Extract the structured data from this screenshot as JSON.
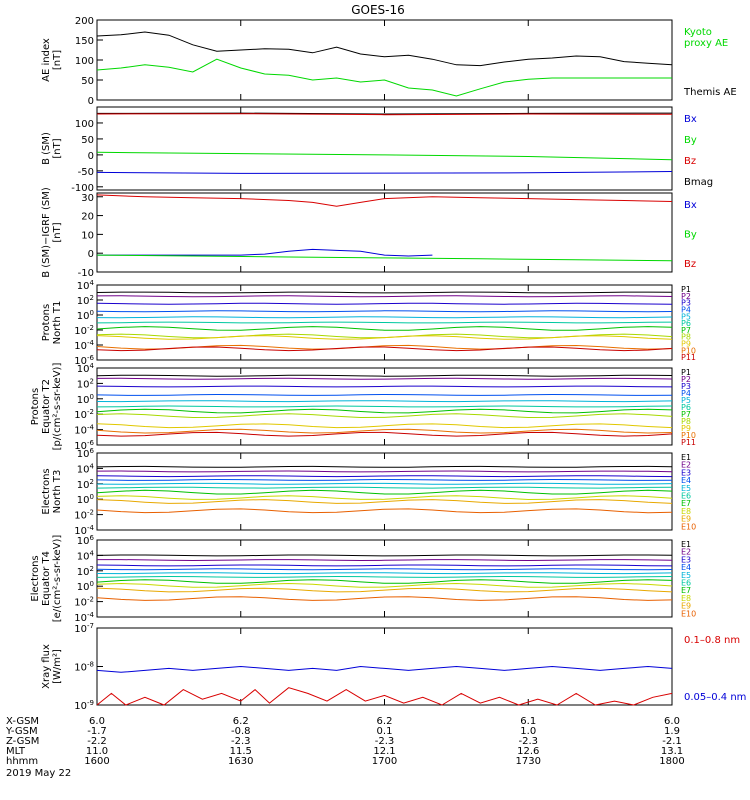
{
  "title": "GOES-16",
  "colors": {
    "black": "#000000",
    "green": "#00d800",
    "red": "#d80000",
    "blue": "#0000d8",
    "P": [
      "#000000",
      "#70008a",
      "#1a00cc",
      "#0050ee",
      "#00b4d8",
      "#00c8a0",
      "#00c000",
      "#a8d800",
      "#e0c800",
      "#e87000",
      "#c80000"
    ],
    "E": [
      "#000000",
      "#70008a",
      "#1a00cc",
      "#0050ee",
      "#00b4d8",
      "#00c8a0",
      "#00c000",
      "#c8d800",
      "#e8a800",
      "#e86000"
    ]
  },
  "chart_data": [
    {
      "type": "line",
      "ylabel": "AE index\n[nT]",
      "ylim": [
        0,
        200
      ],
      "yticks": [
        "0",
        "50",
        "100",
        "150",
        "200"
      ],
      "legend": [
        {
          "label": "Kyoto\nproxy AE",
          "color": "green"
        },
        {
          "label": "Themis AE",
          "color": "black"
        }
      ],
      "series": [
        {
          "name": "Themis AE",
          "color": "black",
          "x": [
            0,
            5,
            10,
            15,
            20,
            25,
            30,
            35,
            40,
            45,
            50,
            55,
            60,
            65,
            70,
            75,
            80,
            85,
            90,
            95,
            100,
            105,
            110,
            115,
            120
          ],
          "y": [
            160,
            163,
            170,
            162,
            138,
            122,
            125,
            128,
            127,
            118,
            132,
            115,
            108,
            112,
            102,
            88,
            86,
            95,
            102,
            105,
            110,
            108,
            96,
            92,
            88
          ]
        },
        {
          "name": "Kyoto proxy AE",
          "color": "green",
          "x": [
            0,
            5,
            10,
            15,
            20,
            25,
            30,
            35,
            40,
            45,
            50,
            55,
            60,
            65,
            70,
            75,
            80,
            85,
            90,
            95,
            100,
            105,
            110,
            115,
            120
          ],
          "y": [
            75,
            80,
            88,
            82,
            70,
            102,
            80,
            65,
            62,
            50,
            55,
            45,
            50,
            30,
            25,
            10,
            28,
            45,
            52,
            55,
            55,
            55,
            55,
            55,
            55
          ]
        }
      ]
    },
    {
      "type": "line",
      "ylabel": "B (SM)\n[nT]",
      "ylim": [
        -110,
        150
      ],
      "yticks": [
        "-100",
        "-50",
        "0",
        "50",
        "100"
      ],
      "legend": [
        {
          "label": "Bx",
          "color": "blue"
        },
        {
          "label": "By",
          "color": "green"
        },
        {
          "label": "Bz",
          "color": "red"
        },
        {
          "label": "Bmag",
          "color": "black"
        }
      ],
      "series": [
        {
          "name": "Bmag",
          "color": "black",
          "x": [
            0,
            30,
            60,
            90,
            120
          ],
          "y": [
            130,
            131,
            128,
            130,
            131
          ]
        },
        {
          "name": "Bz",
          "color": "red",
          "x": [
            0,
            30,
            60,
            90,
            120
          ],
          "y": [
            128,
            129,
            126,
            128,
            127
          ]
        },
        {
          "name": "By",
          "color": "green",
          "x": [
            0,
            30,
            60,
            90,
            120
          ],
          "y": [
            8,
            4,
            0,
            -5,
            -15
          ]
        },
        {
          "name": "Bx",
          "color": "blue",
          "x": [
            0,
            30,
            60,
            90,
            120
          ],
          "y": [
            -55,
            -58,
            -57,
            -56,
            -52
          ]
        }
      ]
    },
    {
      "type": "line",
      "ylabel": "B (SM)−IGRF (SM)\n[nT]",
      "ylim": [
        -10,
        32
      ],
      "yticks": [
        "-10",
        "0",
        "10",
        "20",
        "30"
      ],
      "legend": [
        {
          "label": "Bx",
          "color": "blue"
        },
        {
          "label": "By",
          "color": "green"
        },
        {
          "label": "Bz",
          "color": "red"
        }
      ],
      "series": [
        {
          "name": "Bz",
          "color": "red",
          "x": [
            0,
            10,
            20,
            30,
            40,
            45,
            50,
            55,
            60,
            70,
            80,
            90,
            100,
            110,
            120
          ],
          "y": [
            31,
            30,
            29.5,
            29,
            28,
            27,
            25,
            27,
            29,
            30,
            29.5,
            29,
            28.5,
            28,
            27.5
          ]
        },
        {
          "name": "Bx",
          "color": "blue",
          "x": [
            0,
            10,
            20,
            30,
            35,
            40,
            45,
            50,
            55,
            60,
            65,
            70
          ],
          "y": [
            -1,
            -1,
            -1,
            -1,
            -0.5,
            1,
            2,
            1.5,
            1,
            -1,
            -1.5,
            -1
          ]
        },
        {
          "name": "By",
          "color": "green",
          "x": [
            0,
            20,
            40,
            60,
            80,
            100,
            120
          ],
          "y": [
            -1,
            -1.5,
            -2,
            -2.5,
            -3,
            -3.5,
            -4
          ]
        }
      ]
    },
    {
      "type": "line",
      "log": true,
      "ylabel": "Protons\nNorth T1",
      "ylim": [
        -6,
        4
      ],
      "yticks": [
        "10^-6",
        "10^-4",
        "10^-2",
        "10^0",
        "10^2",
        "10^4"
      ],
      "legend_small": [
        "P1",
        "P2",
        "P3",
        "P4",
        "P5",
        "P6",
        "P7",
        "P8",
        "P9",
        "P10",
        "P11"
      ],
      "series_logy": [
        3,
        2.5,
        1.5,
        0.5,
        -0.3,
        -1,
        -1.8,
        -2.8,
        -3,
        -4.3,
        -4.5
      ]
    },
    {
      "type": "line",
      "log": true,
      "ylabel": "Protons\nEquator T2\n[p/(cm²-s-sr-keV)]",
      "ylim": [
        -6,
        4
      ],
      "yticks": [
        "10^-6",
        "10^-4",
        "10^-2",
        "10^0",
        "10^2",
        "10^4"
      ],
      "legend_small": [
        "P1",
        "P2",
        "P3",
        "P4",
        "P5",
        "P6",
        "P7",
        "P8",
        "P9",
        "P10",
        "P11"
      ],
      "series_logy": [
        3,
        2.6,
        1.6,
        0.5,
        -0.3,
        -1,
        -1.6,
        -2.2,
        -3.5,
        -4.2,
        -4.6
      ]
    },
    {
      "type": "line",
      "log": true,
      "ylabel": "Electrons\nNorth T3",
      "ylim": [
        -4,
        6
      ],
      "yticks": [
        "10^-4",
        "10^-2",
        "10^0",
        "10^2",
        "10^4",
        "10^6"
      ],
      "legend_small": [
        "E1",
        "E2",
        "E3",
        "E4",
        "E5",
        "E6",
        "E7",
        "E8",
        "E9",
        "E10"
      ],
      "series_logy": [
        4.2,
        3.6,
        3,
        2.5,
        2,
        1.5,
        0.9,
        0.2,
        -0.3,
        -1.5
      ]
    },
    {
      "type": "line",
      "log": true,
      "ylabel": "Electrons\nEquator T4\n[e/(cm²-s-sr-keV)]",
      "ylim": [
        -4,
        6
      ],
      "yticks": [
        "10^-4",
        "10^-2",
        "10^0",
        "10^2",
        "10^4",
        "10^6"
      ],
      "legend_small": [
        "E1",
        "E2",
        "E3",
        "E4",
        "E5",
        "E6",
        "E7",
        "E8",
        "E9",
        "E10"
      ],
      "series_logy": [
        4,
        3.4,
        2.7,
        2.2,
        1.7,
        1.2,
        0.6,
        0.1,
        -0.5,
        -1.6
      ]
    },
    {
      "type": "line",
      "log": true,
      "ylabel": "Xray flux\n[W/m²]",
      "ylim": [
        -9,
        -7
      ],
      "yticks": [
        "10^-9",
        "10^-8",
        "10^-7"
      ],
      "legend": [
        {
          "label": "0.1–0.8 nm",
          "color": "red"
        },
        {
          "label": "0.05–0.4 nm",
          "color": "blue"
        }
      ],
      "series": [
        {
          "name": "0.05–0.4 nm",
          "color": "blue",
          "x": [
            0,
            5,
            10,
            15,
            20,
            25,
            30,
            35,
            40,
            45,
            50,
            55,
            60,
            65,
            70,
            75,
            80,
            85,
            90,
            95,
            100,
            105,
            110,
            115,
            120
          ],
          "y": [
            -8.1,
            -8.15,
            -8.1,
            -8.05,
            -8.1,
            -8.05,
            -8.0,
            -8.05,
            -8.1,
            -8.05,
            -8.1,
            -8.0,
            -8.05,
            -8.1,
            -8.05,
            -8.0,
            -8.05,
            -8.1,
            -8.05,
            -8.0,
            -8.05,
            -8.1,
            -8.05,
            -8.0,
            -8.05
          ]
        },
        {
          "name": "0.1–0.8 nm",
          "color": "red",
          "x": [
            0,
            3,
            6,
            10,
            14,
            18,
            22,
            26,
            30,
            33,
            36,
            40,
            44,
            48,
            52,
            56,
            60,
            64,
            68,
            72,
            76,
            80,
            84,
            88,
            92,
            96,
            100,
            104,
            108,
            112,
            116,
            120
          ],
          "y": [
            -9.0,
            -8.7,
            -9.0,
            -8.8,
            -9.0,
            -8.6,
            -8.85,
            -8.7,
            -8.9,
            -8.6,
            -8.95,
            -8.55,
            -8.7,
            -8.9,
            -8.6,
            -8.9,
            -8.75,
            -8.95,
            -8.8,
            -9.0,
            -8.7,
            -8.95,
            -8.8,
            -9.0,
            -8.85,
            -9.0,
            -8.7,
            -9.0,
            -8.9,
            -9.0,
            -8.8,
            -8.7
          ]
        }
      ]
    }
  ],
  "x_axis": {
    "row_labels": [
      "X-GSM",
      "Y-GSM",
      "Z-GSM",
      "MLT",
      "hhmm"
    ],
    "columns": [
      [
        "6.0",
        "-1.7",
        "-2.2",
        "11.0",
        "1600"
      ],
      [
        "6.2",
        "-0.8",
        "-2.3",
        "11.5",
        "1630"
      ],
      [
        "6.2",
        "0.1",
        "-2.3",
        "12.1",
        "1700"
      ],
      [
        "6.1",
        "1.0",
        "-2.3",
        "12.6",
        "1730"
      ],
      [
        "6.0",
        "1.9",
        "-2.1",
        "13.1",
        "1800"
      ]
    ],
    "date": "2019 May 22"
  }
}
